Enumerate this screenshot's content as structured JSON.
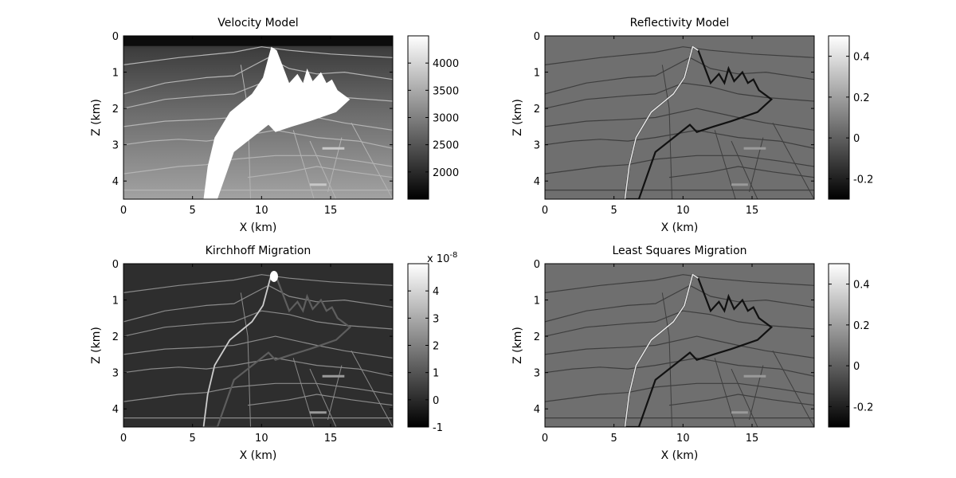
{
  "chart_data": [
    {
      "type": "heatmap",
      "title": "Velocity Model",
      "xlabel": "X (km)",
      "ylabel": "Z (km)",
      "xlim": [
        0,
        19.5
      ],
      "ylim": [
        4.5,
        0
      ],
      "xticks": [
        "0",
        "5",
        "10",
        "15"
      ],
      "yticks": [
        "0",
        "1",
        "2",
        "3",
        "4"
      ],
      "colorbar": {
        "ticks": [
          "2000",
          "2500",
          "3000",
          "3500",
          "4000"
        ],
        "range": [
          1500,
          4500
        ],
        "exponent": ""
      },
      "colormap": "gray"
    },
    {
      "type": "heatmap",
      "title": "Reflectivity Model",
      "xlabel": "X (km)",
      "ylabel": "Z (km)",
      "xlim": [
        0,
        19.5
      ],
      "ylim": [
        4.5,
        0
      ],
      "xticks": [
        "0",
        "5",
        "10",
        "15"
      ],
      "yticks": [
        "0",
        "1",
        "2",
        "3",
        "4"
      ],
      "colorbar": {
        "ticks": [
          "-0.2",
          "0",
          "0.2",
          "0.4"
        ],
        "range": [
          -0.3,
          0.5
        ],
        "exponent": ""
      },
      "colormap": "gray"
    },
    {
      "type": "heatmap",
      "title": "Kirchhoff Migration",
      "xlabel": "X (km)",
      "ylabel": "Z (km)",
      "xlim": [
        0,
        19.5
      ],
      "ylim": [
        4.5,
        0
      ],
      "xticks": [
        "0",
        "5",
        "10",
        "15"
      ],
      "yticks": [
        "0",
        "1",
        "2",
        "3",
        "4"
      ],
      "colorbar": {
        "ticks": [
          "-1",
          "0",
          "1",
          "2",
          "3",
          "4"
        ],
        "range": [
          -1,
          5
        ],
        "exponent": "x 10-8"
      },
      "colormap": "gray"
    },
    {
      "type": "heatmap",
      "title": "Least Squares Migration",
      "xlabel": "X (km)",
      "ylabel": "Z (km)",
      "xlim": [
        0,
        19.5
      ],
      "ylim": [
        4.5,
        0
      ],
      "xticks": [
        "0",
        "5",
        "10",
        "15"
      ],
      "yticks": [
        "0",
        "1",
        "2",
        "3",
        "4"
      ],
      "colorbar": {
        "ticks": [
          "-0.2",
          "0",
          "0.2",
          "0.4"
        ],
        "range": [
          -0.3,
          0.5
        ],
        "exponent": ""
      },
      "colormap": "gray"
    }
  ]
}
